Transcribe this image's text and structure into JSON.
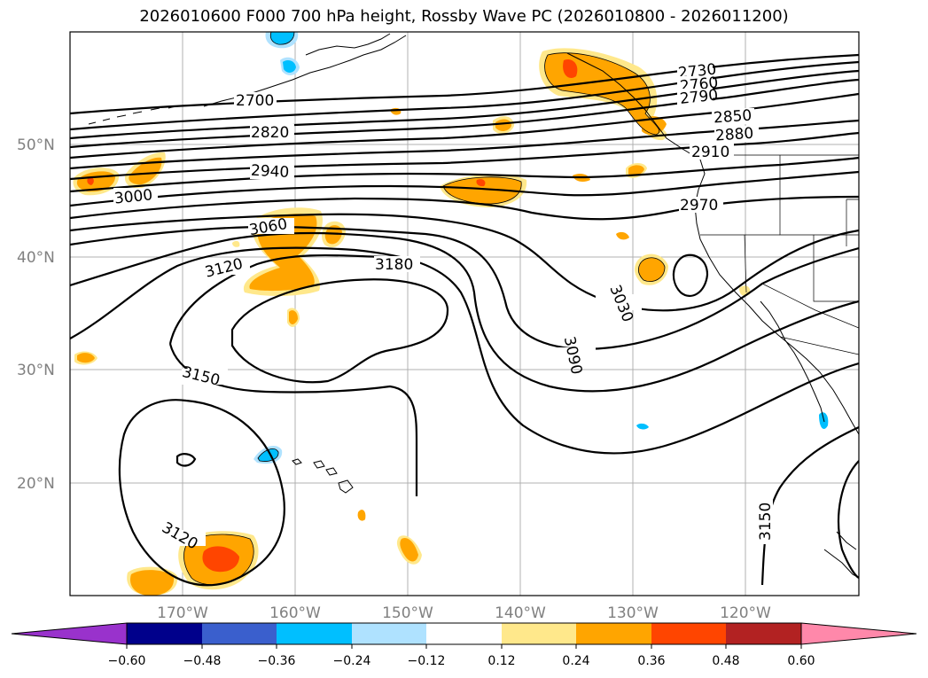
{
  "title": "2026010600 F000 700 hPa height, Rossby Wave PC (2026010800 - 2026011200)",
  "lat_labels": [
    "50°N",
    "40°N",
    "30°N",
    "20°N"
  ],
  "lon_labels": [
    "170°W",
    "160°W",
    "150°W",
    "140°W",
    "130°W",
    "120°W"
  ],
  "colorbar": {
    "tick_labels": [
      "−0.60",
      "−0.48",
      "−0.36",
      "−0.24",
      "−0.12",
      "0.12",
      "0.24",
      "0.36",
      "0.48",
      "0.60"
    ],
    "colors": [
      "#9932cc",
      "#00008b",
      "#3a5fcd",
      "#00bfff",
      "#afe2ff",
      "#ffffff",
      "#ffe88b",
      "#ffa500",
      "#ff4500",
      "#b22222",
      "#ff88aa"
    ]
  },
  "contour_labels": [
    "2730",
    "2760",
    "2790",
    "2700",
    "2850",
    "2820",
    "2880",
    "2910",
    "2940",
    "3000",
    "2970",
    "3060",
    "3120",
    "3180",
    "3030",
    "3090",
    "3150",
    "3120",
    "3150"
  ]
}
